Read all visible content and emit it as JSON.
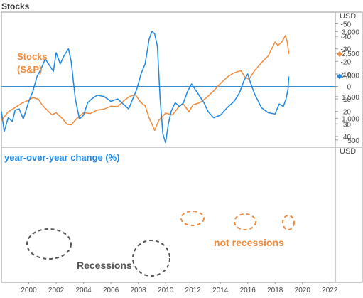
{
  "header": {
    "title": "Stocks"
  },
  "colors": {
    "stocks": "#f08a3c",
    "yoy": "#1e88e5",
    "zero_line": "#2f8fd8",
    "annotation_gray": "#555555",
    "annotation_orange": "#f08a3c",
    "frame": "#9a9a9a",
    "axis_text": "#444444"
  },
  "chart_data": [
    {
      "type": "line",
      "panel": "top",
      "unit_label": "USD",
      "series_label": [
        "Stocks",
        "(S&P)"
      ],
      "x_unit": "year",
      "ylim": [
        350,
        3300
      ],
      "yticks": [
        500,
        1000,
        1500,
        2000,
        2500,
        3000
      ],
      "ytick_labels": [
        "500",
        "1,000",
        "1,500",
        "2,000",
        "2,500",
        "3,000"
      ],
      "last_value_marker": 2480,
      "series": [
        {
          "x": [
            1998.0,
            1998.5,
            1999.0,
            1999.5,
            2000.0,
            2000.3,
            2000.7,
            2001.0,
            2001.3,
            2001.7,
            2002.0,
            2002.5,
            2002.8,
            2003.1,
            2003.5,
            2004.0,
            2004.5,
            2005.0,
            2005.5,
            2006.0,
            2006.5,
            2007.0,
            2007.4,
            2007.8,
            2008.2,
            2008.5,
            2008.8,
            2009.0,
            2009.2,
            2009.5,
            2010.0,
            2010.5,
            2011.0,
            2011.3,
            2011.7,
            2012.0,
            2012.5,
            2013.0,
            2013.5,
            2014.0,
            2014.5,
            2015.0,
            2015.5,
            2015.8,
            2016.1,
            2016.5,
            2017.0,
            2017.5,
            2018.0,
            2018.2,
            2018.5,
            2018.75,
            2018.9,
            2019.0
          ],
          "y": [
            950,
            1150,
            1250,
            1350,
            1420,
            1480,
            1440,
            1300,
            1200,
            1080,
            1130,
            980,
            860,
            850,
            990,
            1130,
            1110,
            1190,
            1210,
            1280,
            1270,
            1420,
            1510,
            1540,
            1360,
            1290,
            1000,
            870,
            720,
            950,
            1120,
            1080,
            1280,
            1330,
            1150,
            1310,
            1360,
            1480,
            1630,
            1800,
            1950,
            2050,
            2100,
            1950,
            1900,
            2100,
            2280,
            2440,
            2760,
            2680,
            2760,
            2910,
            2750,
            2480
          ]
        }
      ]
    },
    {
      "type": "line",
      "panel": "bottom",
      "unit_label": "USD",
      "series_label": "year-over-year change (%)",
      "x_unit": "year",
      "xlim": [
        1998.0,
        2022.4
      ],
      "xticks": [
        2000,
        2002,
        2004,
        2006,
        2008,
        2010,
        2012,
        2014,
        2016,
        2018,
        2020,
        2022
      ],
      "ylim": [
        -52,
        52
      ],
      "yticks": [
        -50,
        -40,
        -30,
        -20,
        -10,
        0,
        10,
        20,
        30,
        40
      ],
      "zero_line": 0,
      "last_value_marker": -8,
      "series": [
        {
          "x": [
            1998.0,
            1998.2,
            1998.5,
            1998.8,
            1999.0,
            1999.3,
            1999.6,
            2000.0,
            2000.3,
            2000.6,
            2000.9,
            2001.2,
            2001.5,
            2001.8,
            2002.0,
            2002.3,
            2002.6,
            2002.9,
            2003.1,
            2003.4,
            2003.7,
            2004.0,
            2004.3,
            2004.6,
            2005.0,
            2005.5,
            2006.0,
            2006.5,
            2007.0,
            2007.3,
            2007.6,
            2007.9,
            2008.2,
            2008.5,
            2008.8,
            2009.0,
            2009.2,
            2009.4,
            2009.6,
            2009.8,
            2010.0,
            2010.2,
            2010.4,
            2010.7,
            2011.0,
            2011.3,
            2011.6,
            2011.9,
            2012.2,
            2012.5,
            2012.8,
            2013.1,
            2013.5,
            2014.0,
            2014.5,
            2015.0,
            2015.4,
            2015.7,
            2016.0,
            2016.2,
            2016.5,
            2017.0,
            2017.5,
            2018.0,
            2018.3,
            2018.6,
            2018.8,
            2018.95,
            2019.0
          ],
          "y": [
            20,
            36,
            25,
            28,
            19,
            18,
            26,
            12,
            4,
            -8,
            -14,
            -22,
            -17,
            -12,
            -27,
            -18,
            -25,
            -30,
            -20,
            10,
            26,
            23,
            13,
            10,
            7,
            8,
            12,
            10,
            15,
            18,
            10,
            2,
            -10,
            -18,
            -38,
            -44,
            -42,
            -32,
            10,
            38,
            45,
            30,
            20,
            13,
            16,
            13,
            4,
            -2,
            3,
            8,
            13,
            20,
            25,
            23,
            17,
            12,
            5,
            -4,
            -10,
            -3,
            6,
            17,
            21,
            22,
            14,
            16,
            10,
            2,
            -8
          ]
        }
      ],
      "annotations": {
        "recessions": "Recessions",
        "not_recessions": "not recessions"
      }
    }
  ]
}
